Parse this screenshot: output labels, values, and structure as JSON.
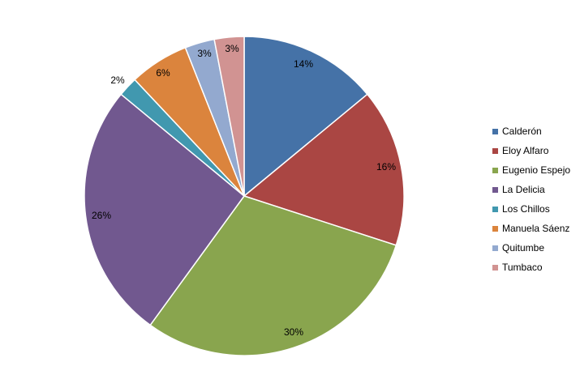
{
  "chart_data": {
    "type": "pie",
    "title": "",
    "categories": [
      "Calderón",
      "Eloy Alfaro",
      "Eugenio Espejo",
      "La Delicia",
      "Los Chillos",
      "Manuela Sáenz",
      "Quitumbe",
      "Tumbaco"
    ],
    "values": [
      14,
      16,
      30,
      26,
      2,
      6,
      3,
      3
    ],
    "value_labels": [
      "14%",
      "16%",
      "30%",
      "26%",
      "2%",
      "6%",
      "3%",
      "3%"
    ],
    "colors": [
      "#4572A7",
      "#AA4643",
      "#89A54E",
      "#71588F",
      "#4198AF",
      "#DB843D",
      "#93A9CF",
      "#D19392"
    ],
    "start_angle": "12 o'clock",
    "direction": "clockwise",
    "legend_position": "right"
  },
  "legend": {
    "items": [
      {
        "label": "Calderón",
        "color": "#4572A7"
      },
      {
        "label": "Eloy Alfaro",
        "color": "#AA4643"
      },
      {
        "label": "Eugenio Espejo",
        "color": "#89A54E"
      },
      {
        "label": "La Delicia",
        "color": "#71588F"
      },
      {
        "label": "Los Chillos",
        "color": "#4198AF"
      },
      {
        "label": "Manuela Sáenz",
        "color": "#DB843D"
      },
      {
        "label": "Quitumbe",
        "color": "#93A9CF"
      },
      {
        "label": "Tumbaco",
        "color": "#D19392"
      }
    ]
  }
}
